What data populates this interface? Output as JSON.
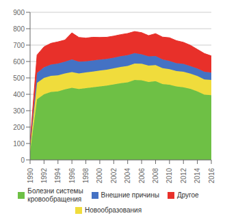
{
  "chart_data": {
    "type": "area",
    "stacked": true,
    "grid": true,
    "legend": "bottom",
    "x": [
      1990,
      1991,
      1992,
      1993,
      1994,
      1995,
      1996,
      1997,
      1998,
      1999,
      2000,
      2001,
      2002,
      2003,
      2004,
      2005,
      2006,
      2007,
      2008,
      2009,
      2010,
      2011,
      2012,
      2013,
      2014,
      2015,
      2016
    ],
    "xlim": [
      1990,
      2016
    ],
    "xticks": [
      1990,
      1992,
      1994,
      1996,
      1998,
      2000,
      2002,
      2004,
      2006,
      2008,
      2010,
      2012,
      2014,
      2016
    ],
    "ylim": [
      0,
      900
    ],
    "yticks": [
      0,
      100,
      200,
      300,
      400,
      500,
      600,
      700,
      800,
      900
    ],
    "series": [
      {
        "name": "Болезни системы\nкровообращения",
        "color": "#6EC045",
        "values": [
          50,
          370,
          400,
          415,
          418,
          430,
          440,
          432,
          438,
          443,
          448,
          453,
          460,
          468,
          473,
          488,
          485,
          475,
          480,
          463,
          458,
          448,
          443,
          433,
          418,
          398,
          395
        ]
      },
      {
        "name": "Новообразования",
        "color": "#F0DC3C",
        "values": [
          30,
          100,
          100,
          98,
          98,
          97,
          95,
          95,
          95,
          96,
          97,
          97,
          98,
          99,
          100,
          100,
          101,
          100,
          98,
          96,
          95,
          94,
          94,
          93,
          93,
          93,
          92
        ]
      },
      {
        "name": "Внешние причины",
        "color": "#4472C4",
        "values": [
          10,
          60,
          65,
          68,
          72,
          72,
          78,
          72,
          68,
          67,
          66,
          66,
          65,
          65,
          66,
          63,
          58,
          56,
          55,
          53,
          50,
          48,
          48,
          46,
          46,
          46,
          45
        ]
      },
      {
        "name": "Другое",
        "color": "#E8302A",
        "values": [
          15,
          110,
          125,
          130,
          132,
          132,
          162,
          148,
          142,
          142,
          136,
          132,
          132,
          132,
          132,
          132,
          132,
          127,
          137,
          137,
          142,
          137,
          132,
          127,
          117,
          112,
          102
        ]
      }
    ]
  }
}
